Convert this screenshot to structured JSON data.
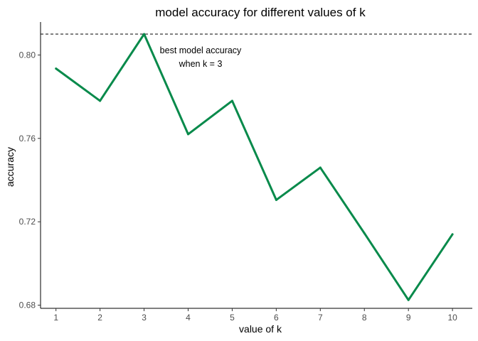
{
  "chart_data": {
    "type": "line",
    "title": "model accuracy for different values of k",
    "xlabel": "value of k",
    "ylabel": "accuracy",
    "x": [
      1,
      2,
      3,
      4,
      5,
      6,
      7,
      8,
      9,
      10
    ],
    "series": [
      {
        "values": [
          0.7935,
          0.778,
          0.81,
          0.762,
          0.778,
          0.7305,
          0.746,
          0.7145,
          0.6825,
          0.714
        ],
        "color": "#088a4b"
      }
    ],
    "xticks": [
      "1",
      "2",
      "3",
      "4",
      "5",
      "6",
      "7",
      "8",
      "9",
      "10"
    ],
    "yticks": [
      "0.68",
      "0.72",
      "0.76",
      "0.80"
    ],
    "ytick_values": [
      0.68,
      0.72,
      0.76,
      0.8
    ],
    "xlim": [
      0.65,
      10.45
    ],
    "ylim": [
      0.6785,
      0.8158
    ],
    "reference_line": {
      "y": 0.81,
      "style": "dashed"
    },
    "annotation": {
      "lines": [
        "best model accuracy",
        "when k = 3"
      ]
    },
    "grid": false
  }
}
